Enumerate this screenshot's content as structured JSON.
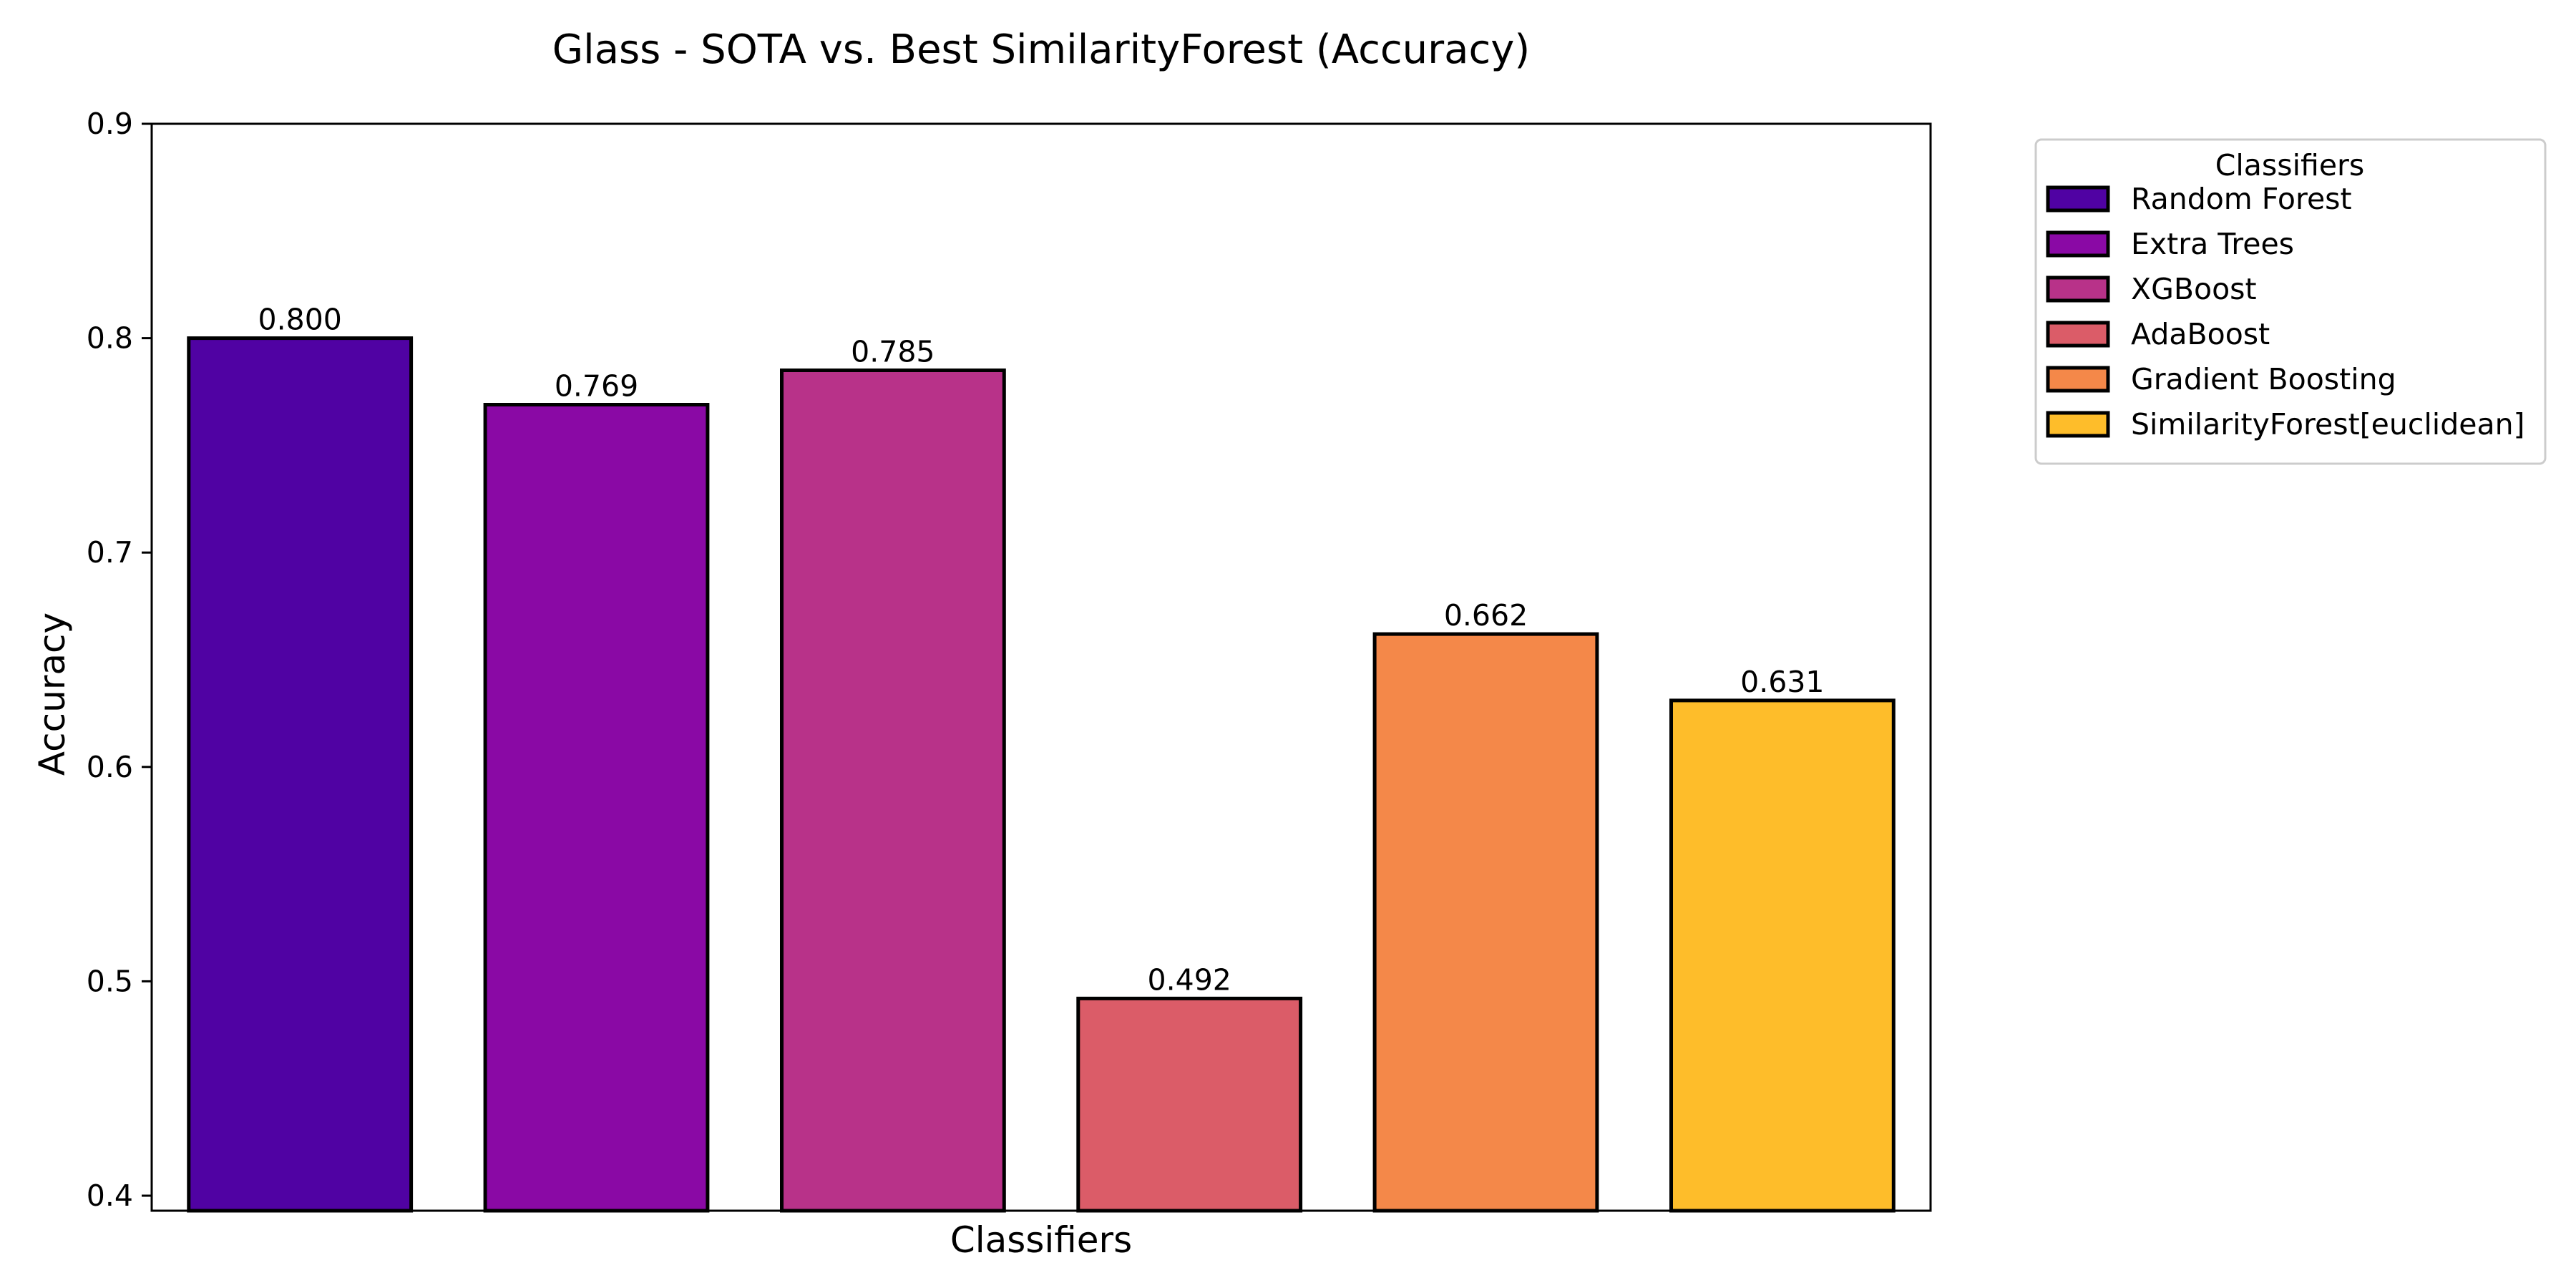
{
  "chart_data": {
    "type": "bar",
    "title": "Glass - SOTA vs. Best SimilarityForest (Accuracy)",
    "xlabel": "Classifiers",
    "ylabel": "Accuracy",
    "ylim": [
      0.393,
      0.9
    ],
    "yticks": [
      0.4,
      0.5,
      0.6,
      0.7,
      0.8,
      0.9
    ],
    "ytick_labels": [
      "0.4",
      "0.5",
      "0.6",
      "0.7",
      "0.8",
      "0.9"
    ],
    "categories": [
      "Random Forest",
      "Extra Trees",
      "XGBoost",
      "AdaBoost",
      "Gradient Boosting",
      "SimilarityForest[euclidean]"
    ],
    "values": [
      0.8,
      0.769,
      0.785,
      0.492,
      0.662,
      0.631
    ],
    "value_labels": [
      "0.800",
      "0.769",
      "0.785",
      "0.492",
      "0.662",
      "0.631"
    ],
    "colors": [
      "#5002a3",
      "#8a09a5",
      "#b83289",
      "#db5c68",
      "#f48849",
      "#febd2a"
    ],
    "edge_color": "#000000",
    "grid": false,
    "legend": {
      "title": "Classifiers",
      "placement": "outside-right-top"
    }
  }
}
